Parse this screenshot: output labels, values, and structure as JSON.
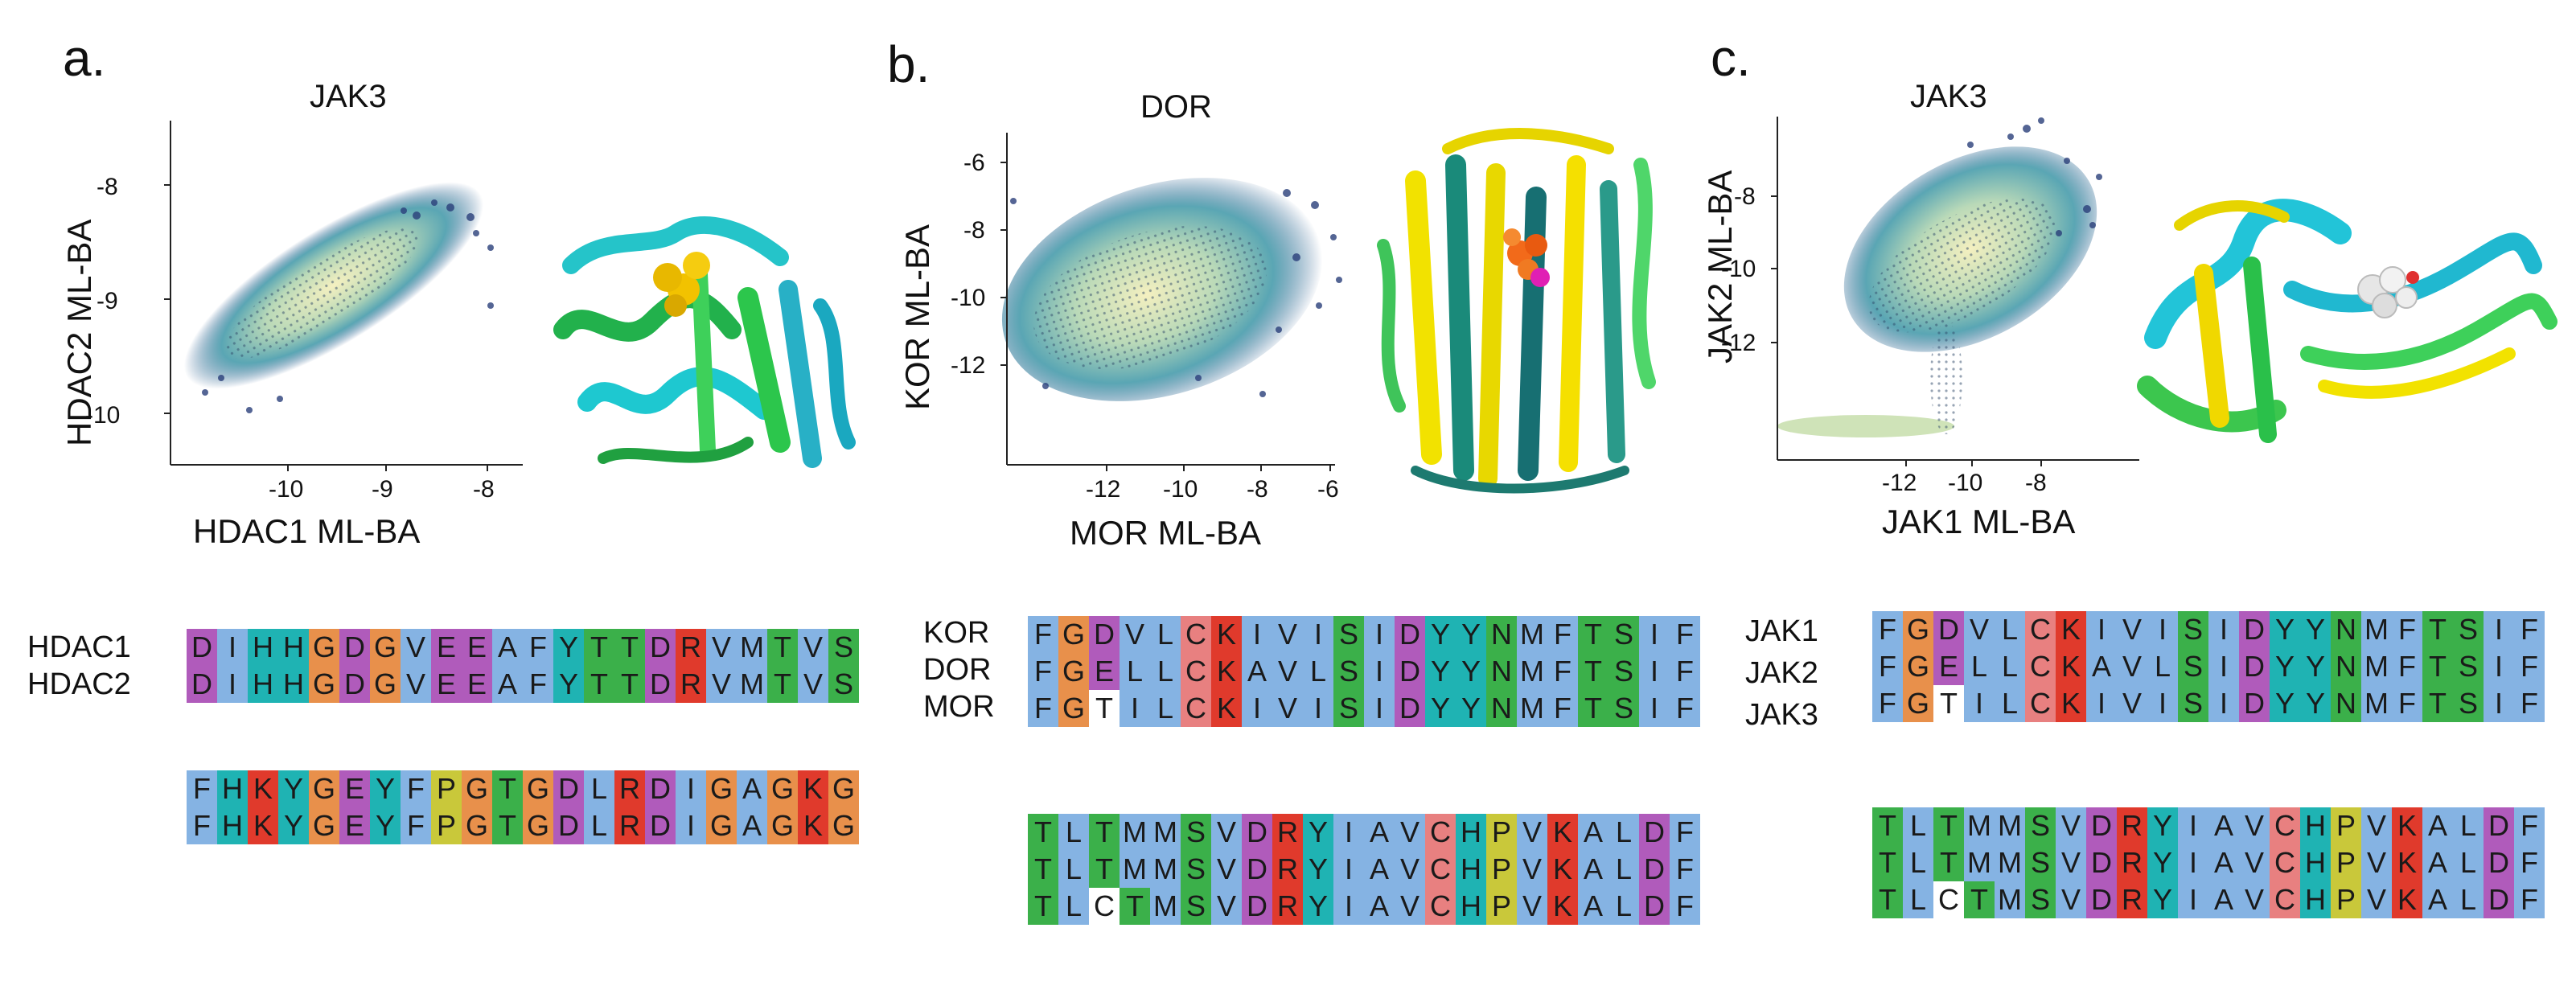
{
  "colors": {
    "A": "#85b3e3",
    "V": "#85b3e3",
    "I": "#85b3e3",
    "L": "#85b3e3",
    "M": "#85b3e3",
    "F": "#85b3e3",
    "W": "#85b3e3",
    "G": "#e8904b",
    "P": "#c9c83a",
    "C": "#e88080",
    "S": "#3bb04a",
    "T": "#3bb04a",
    "N": "#3bb04a",
    "Q": "#3bb04a",
    "D": "#b05bbb",
    "E": "#b05bbb",
    "K": "#e03a2c",
    "R": "#e03a2c",
    "H": "#1fb3b3",
    "Y": "#1fb3b3",
    "gap": "#ffffff"
  },
  "panels": [
    {
      "letter": "a.",
      "title": "JAK3",
      "xlabel": "HDAC1 ML-BA",
      "ylabel": "HDAC2 ML-BA",
      "xticks": [
        "-10",
        "-9",
        "-8"
      ],
      "yticks": [
        "-8",
        "-9",
        "-10"
      ],
      "alignment": {
        "blocks": [
          [
            {
              "label": "HDAC1",
              "seq": "DIHHGDGVEEAFYTTDRVMTVS"
            },
            {
              "label": "HDAC2",
              "seq": "DIHHGDGVEEAFYTTDRVMTVS"
            }
          ],
          [
            {
              "label": "",
              "seq": "FHKYGEYFPGTGDLRDIGAGKG"
            },
            {
              "label": "",
              "seq": "FHKYGEYFPGTGDLRDIGAGKG"
            }
          ]
        ]
      }
    },
    {
      "letter": "b.",
      "title": "DOR",
      "xlabel": "MOR ML-BA",
      "ylabel": "KOR ML-BA",
      "xticks": [
        "-12",
        "-10",
        "-8",
        "-6"
      ],
      "yticks": [
        "-6",
        "-8",
        "-10",
        "-12"
      ],
      "alignment": {
        "blocks": [
          [
            {
              "label": "KOR",
              "seq": "FGDVLCKIVISIDYYNMFTSIF"
            },
            {
              "label": "DOR",
              "seq": "FGELLCKAVLSIDYYNMFTSIF"
            },
            {
              "label": "MOR",
              "seq": "FGTILCKIVISIDYYNMFTSIF"
            }
          ],
          [
            {
              "label": "",
              "seq": "TLTMMSVDRYIAVCHPVKALDF"
            },
            {
              "label": "",
              "seq": "TLTMMSVDRYIAVCHPVKALDF"
            },
            {
              "label": "",
              "seq": "TLCTMSVDRYIAVCHPVKALDF"
            }
          ]
        ]
      }
    },
    {
      "letter": "c.",
      "title": "JAK3",
      "xlabel": "JAK1 ML-BA",
      "ylabel": "JAK2 ML-BA",
      "xticks": [
        "-12",
        "-10",
        "-8"
      ],
      "yticks": [
        "-8",
        "-10",
        "-12"
      ],
      "alignment": {
        "blocks": [
          [
            {
              "label": "JAK1",
              "seq": "FGDVLCKIVISIDYYNMFTSIF"
            },
            {
              "label": "JAK2",
              "seq": "FGELLCKAVLSIDYYNMFTSIF"
            },
            {
              "label": "JAK3",
              "seq": "FGTILCKIVISIDYYNMFTSIF"
            }
          ],
          [
            {
              "label": "",
              "seq": "TLTMMSVDRYIAVCHPVKALDF"
            },
            {
              "label": "",
              "seq": "TLTMMSVDRYIAVCHPVKALDF"
            },
            {
              "label": "",
              "seq": "TLCTMSVDRYIAVCHPVKALDF"
            }
          ]
        ]
      }
    }
  ]
}
